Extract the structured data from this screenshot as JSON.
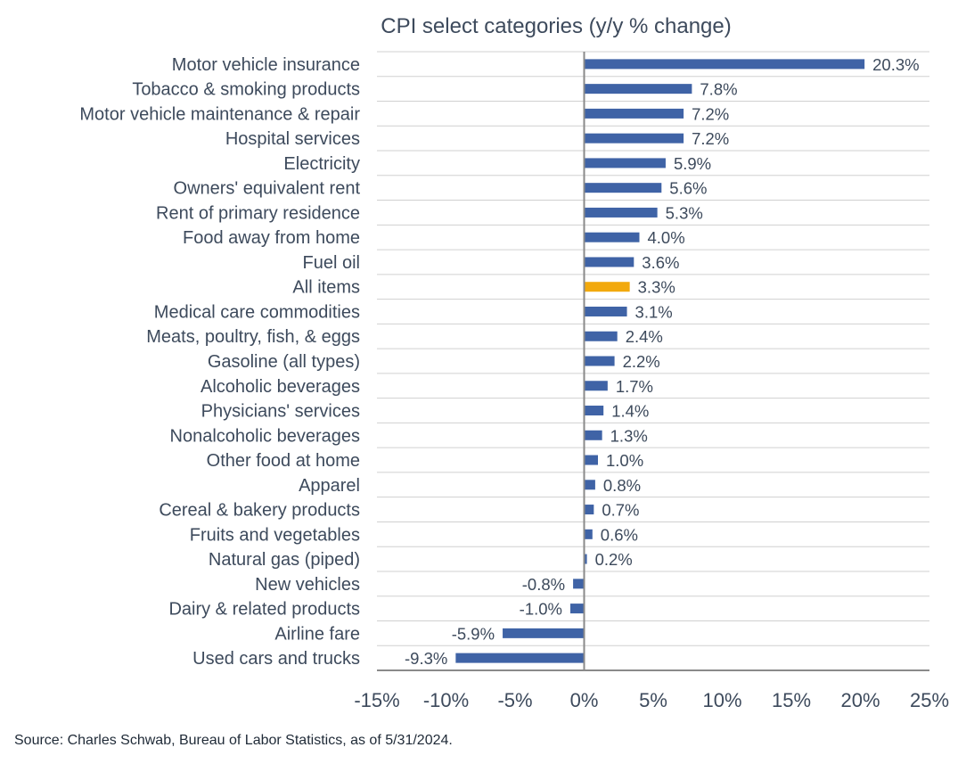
{
  "chart_data": {
    "type": "bar",
    "orientation": "horizontal",
    "title": "CPI select categories (y/y % change)",
    "categories": [
      "Motor vehicle insurance",
      "Tobacco & smoking products",
      "Motor vehicle maintenance & repair",
      "Hospital services",
      "Electricity",
      "Owners' equivalent rent",
      "Rent of primary residence",
      "Food away from home",
      "Fuel oil",
      "All items",
      "Medical care commodities",
      "Meats, poultry, fish, & eggs",
      "Gasoline (all types)",
      "Alcoholic beverages",
      "Physicians' services",
      "Nonalcoholic beverages",
      "Other food at home",
      "Apparel",
      "Cereal & bakery products",
      "Fruits and vegetables",
      "Natural gas (piped)",
      "New vehicles",
      "Dairy & related products",
      "Airline fare",
      "Used cars and trucks"
    ],
    "values": [
      20.3,
      7.8,
      7.2,
      7.2,
      5.9,
      5.6,
      5.3,
      4.0,
      3.6,
      3.3,
      3.1,
      2.4,
      2.2,
      1.7,
      1.4,
      1.3,
      1.0,
      0.8,
      0.7,
      0.6,
      0.2,
      -0.8,
      -1.0,
      -5.9,
      -9.3
    ],
    "value_labels": [
      "20.3%",
      "7.8%",
      "7.2%",
      "7.2%",
      "5.9%",
      "5.6%",
      "5.3%",
      "4.0%",
      "3.6%",
      "3.3%",
      "3.1%",
      "2.4%",
      "2.2%",
      "1.7%",
      "1.4%",
      "1.3%",
      "1.0%",
      "0.8%",
      "0.7%",
      "0.6%",
      "0.2%",
      "-0.8%",
      "-1.0%",
      "-5.9%",
      "-9.3%"
    ],
    "highlight_category": "All items",
    "xlim": [
      -15,
      25
    ],
    "xticks": [
      -15,
      -10,
      -5,
      0,
      5,
      10,
      15,
      20,
      25
    ],
    "xtick_labels": [
      "-15%",
      "-10%",
      "-5%",
      "0%",
      "5%",
      "10%",
      "15%",
      "20%",
      "25%"
    ],
    "xlabel": "",
    "ylabel": "",
    "grid": "horizontal row separators",
    "legend": "none",
    "colors": {
      "bar": "#3f63a6",
      "highlight": "#f2a90d",
      "grid": "#d0d0d0",
      "axis": "#8a8a8a",
      "text": "#3d4a5c"
    }
  },
  "source_note": "Source: Charles Schwab, Bureau of Labor Statistics, as of 5/31/2024."
}
